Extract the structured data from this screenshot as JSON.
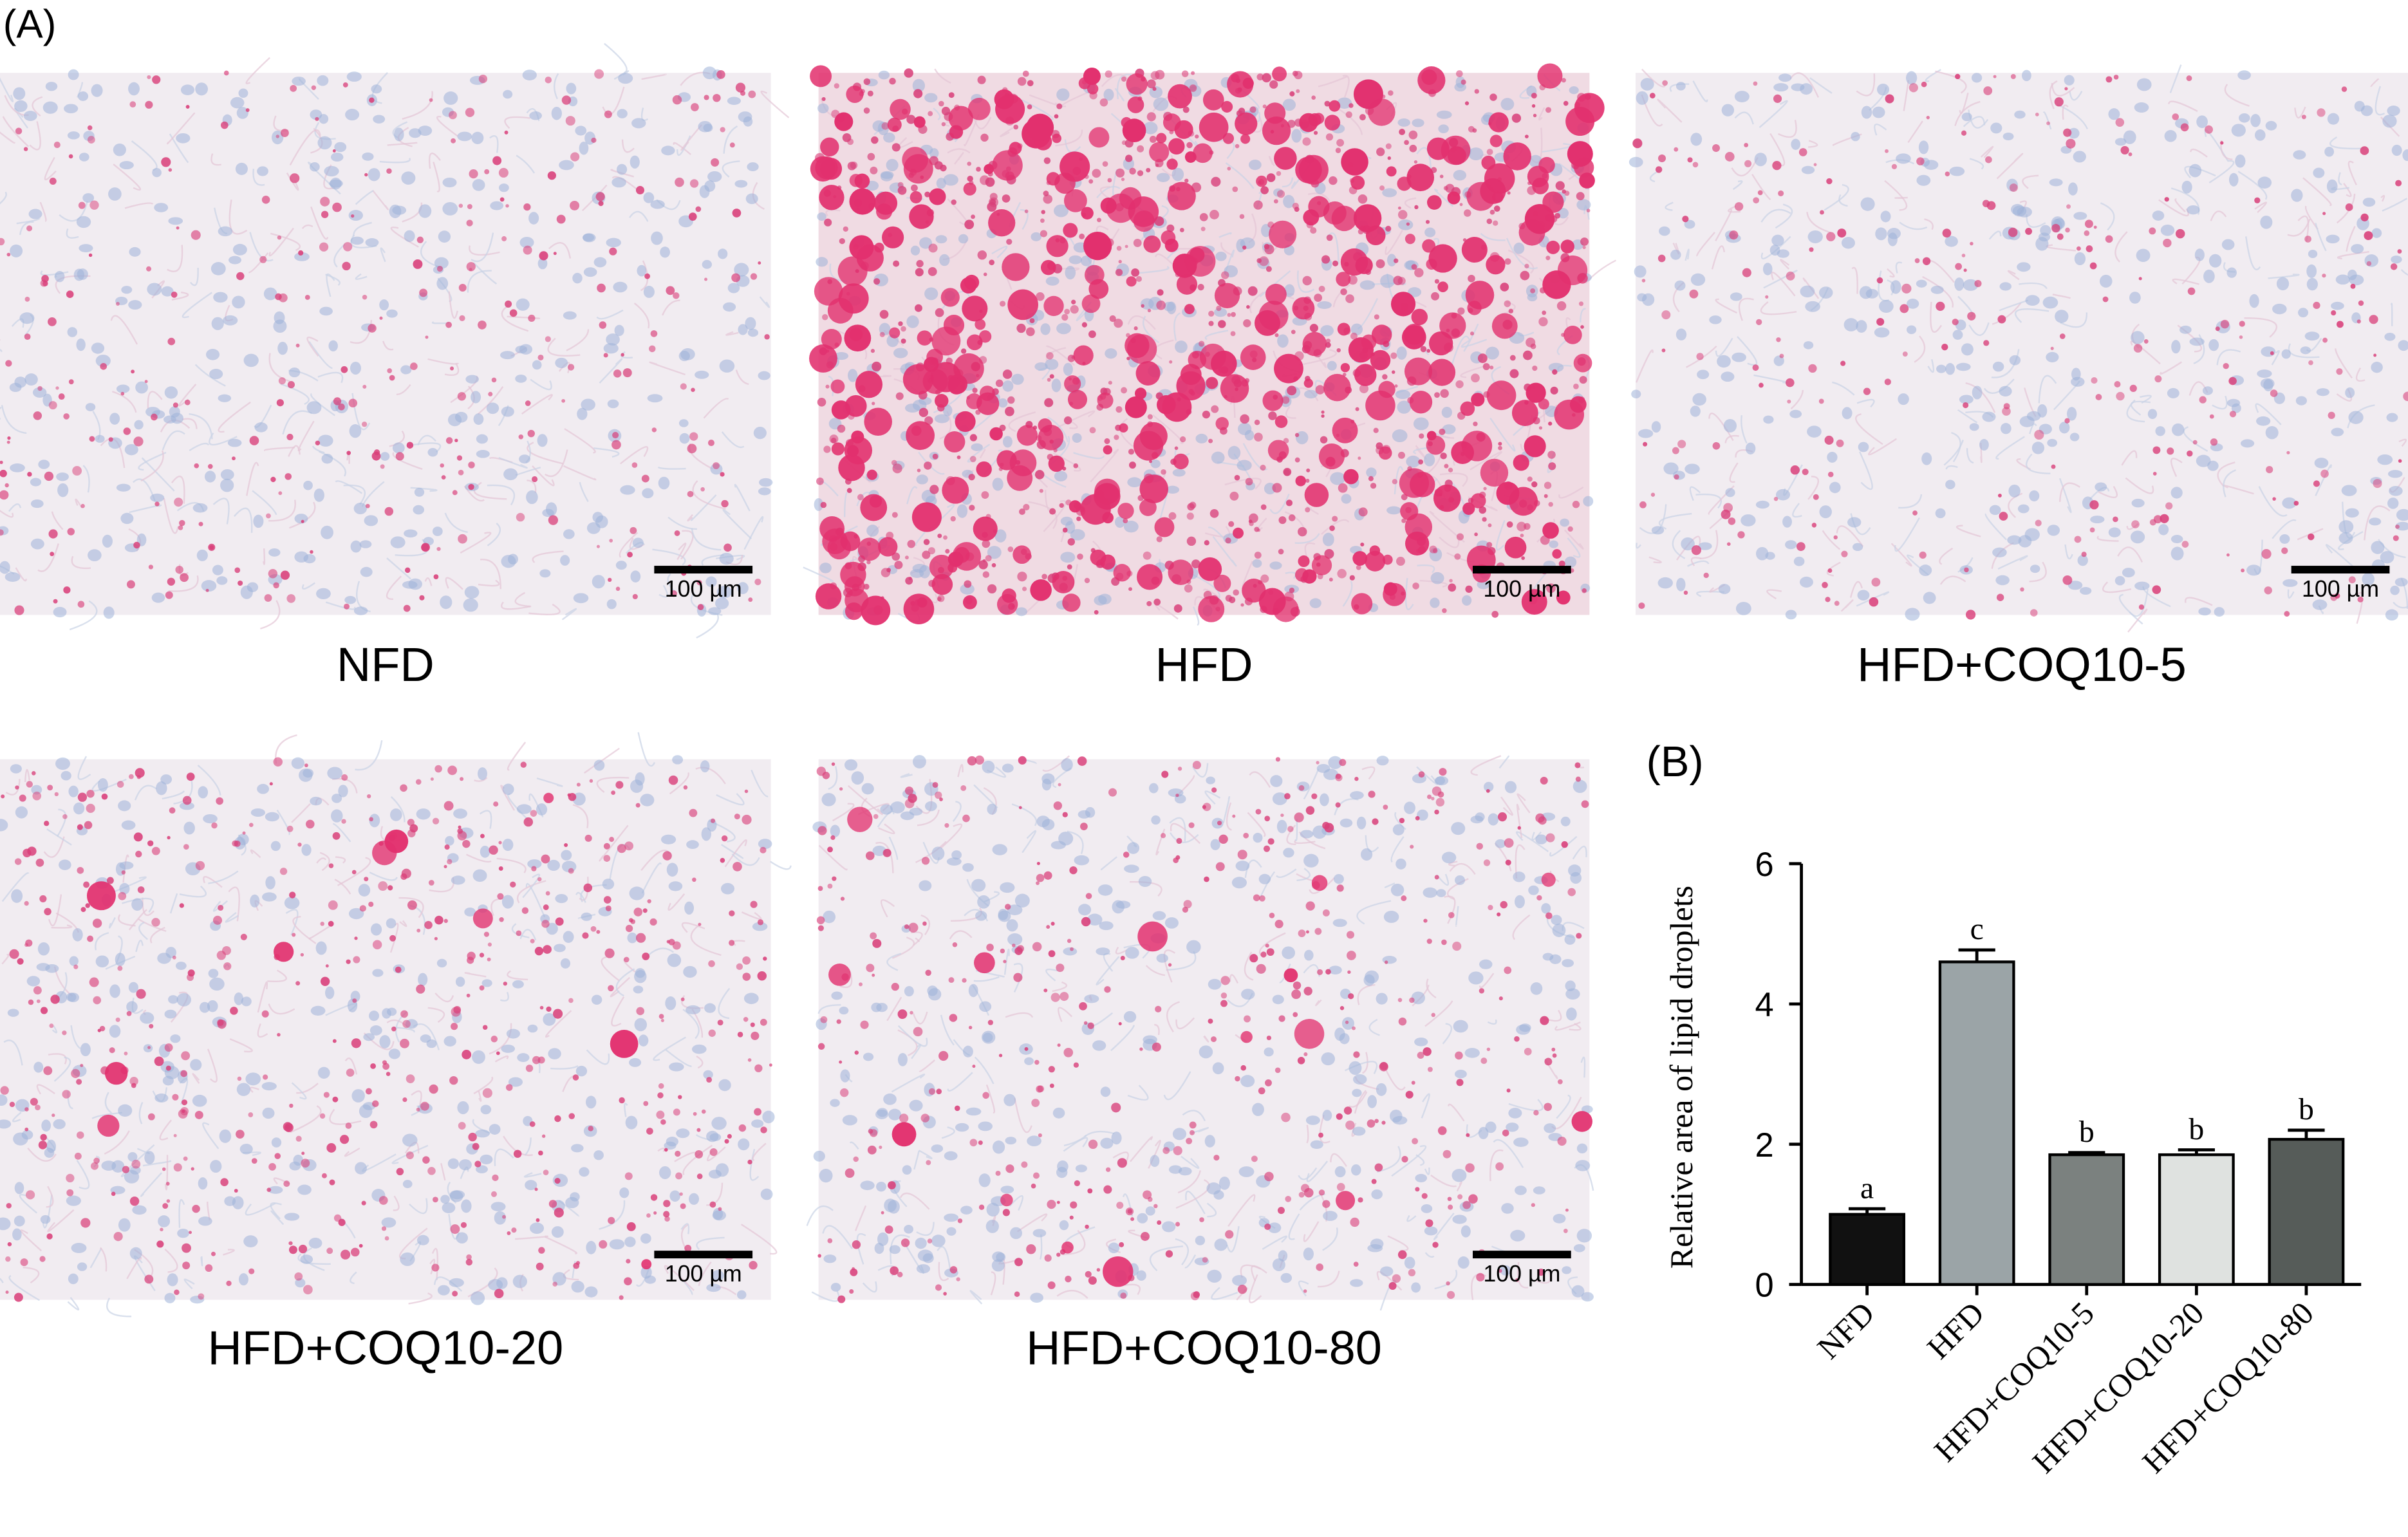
{
  "panel_a_label": "(A)",
  "panel_b_label": "(B)",
  "images": [
    {
      "label": "NFD",
      "scale_bar": "100 µm"
    },
    {
      "label": "HFD",
      "scale_bar": "100 µm"
    },
    {
      "label": "HFD+COQ10-5",
      "scale_bar": "100 µm"
    },
    {
      "label": "HFD+COQ10-20",
      "scale_bar": "100 µm"
    },
    {
      "label": "HFD+COQ10-80",
      "scale_bar": "100 µm"
    }
  ],
  "chart_data": {
    "type": "bar",
    "y_label": "Relative area of lipid droplets",
    "categories": [
      "NFD",
      "HFD",
      "HFD+COQ10-5",
      "HFD+COQ10-20",
      "HFD+COQ10-80"
    ],
    "values": [
      1.0,
      4.6,
      1.85,
      1.85,
      2.07
    ],
    "errors": [
      0.08,
      0.17,
      0.03,
      0.07,
      0.13
    ],
    "annotations": [
      "a",
      "c",
      "b",
      "b",
      "b"
    ],
    "colors": [
      "#111111",
      "#9ba4a7",
      "#7b817f",
      "#dfe2e0",
      "#565c59"
    ],
    "ylim": [
      0,
      6
    ],
    "yticks": [
      0,
      2,
      4,
      6
    ]
  }
}
